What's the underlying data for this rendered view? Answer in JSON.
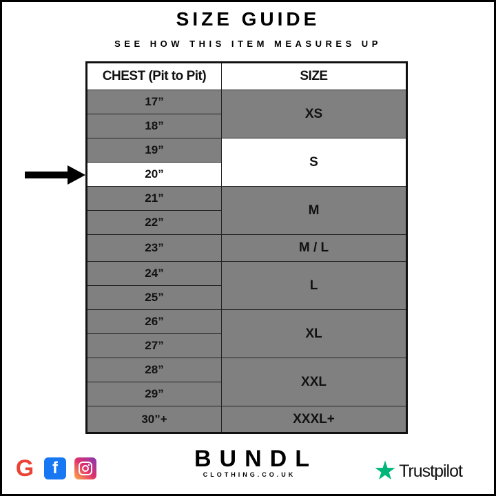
{
  "title": "SIZE GUIDE",
  "subtitle": "SEE HOW THIS ITEM MEASURES UP",
  "table": {
    "headers": [
      "CHEST (Pit to Pit)",
      "SIZE"
    ],
    "chest": [
      "17”",
      "18”",
      "19”",
      "20”",
      "21”",
      "22”",
      "23”",
      "24”",
      "25”",
      "26”",
      "27”",
      "28”",
      "29”",
      "30”+"
    ],
    "sizes": [
      "XS",
      "S",
      "M",
      "M / L",
      "L",
      "XL",
      "XXL",
      "XXXL+"
    ],
    "highlighted_chest": "20”",
    "highlighted_size": "S"
  },
  "colors": {
    "row_fill": "#808080",
    "highlight": "#ffffff",
    "trustpilot_green": "#00b67a"
  },
  "footer": {
    "social_icons": [
      "google-icon",
      "facebook-icon",
      "instagram-icon"
    ],
    "brand": "BUNDL",
    "brand_sub": "CLOTHING.CO.UK",
    "trustpilot": "Trustpilot"
  }
}
